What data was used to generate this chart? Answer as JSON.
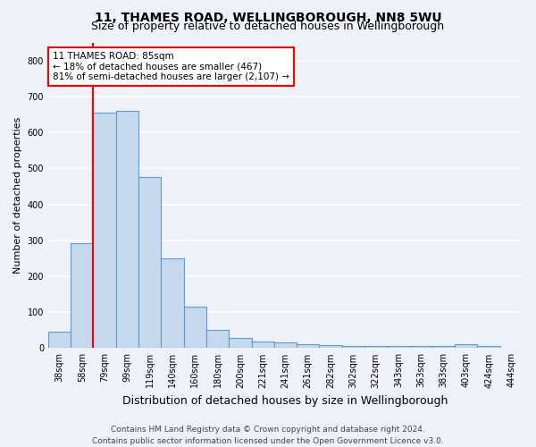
{
  "title1": "11, THAMES ROAD, WELLINGBOROUGH, NN8 5WU",
  "title2": "Size of property relative to detached houses in Wellingborough",
  "xlabel": "Distribution of detached houses by size in Wellingborough",
  "ylabel": "Number of detached properties",
  "categories": [
    "38sqm",
    "58sqm",
    "79sqm",
    "99sqm",
    "119sqm",
    "140sqm",
    "160sqm",
    "180sqm",
    "200sqm",
    "221sqm",
    "241sqm",
    "261sqm",
    "282sqm",
    "302sqm",
    "322sqm",
    "343sqm",
    "363sqm",
    "383sqm",
    "403sqm",
    "424sqm",
    "444sqm"
  ],
  "values": [
    47,
    293,
    655,
    660,
    475,
    250,
    115,
    52,
    28,
    18,
    15,
    10,
    8,
    7,
    6,
    6,
    5,
    5,
    10,
    5,
    0
  ],
  "bar_color": "#c5d8ed",
  "bar_edge_color": "#5b9bd5",
  "red_line_index": 2,
  "annotation_line1": "11 THAMES ROAD: 85sqm",
  "annotation_line2": "← 18% of detached houses are smaller (467)",
  "annotation_line3": "81% of semi-detached houses are larger (2,107) →",
  "annotation_box_color": "white",
  "annotation_box_edge": "red",
  "ylim": [
    0,
    850
  ],
  "yticks": [
    0,
    100,
    200,
    300,
    400,
    500,
    600,
    700,
    800
  ],
  "footer": "Contains HM Land Registry data © Crown copyright and database right 2024.\nContains public sector information licensed under the Open Government Licence v3.0.",
  "bg_color": "#eef2f8",
  "grid_color": "white",
  "title1_fontsize": 10,
  "title2_fontsize": 9,
  "xlabel_fontsize": 9,
  "ylabel_fontsize": 8,
  "tick_fontsize": 7,
  "footer_fontsize": 6.5,
  "annotation_fontsize": 7.5
}
